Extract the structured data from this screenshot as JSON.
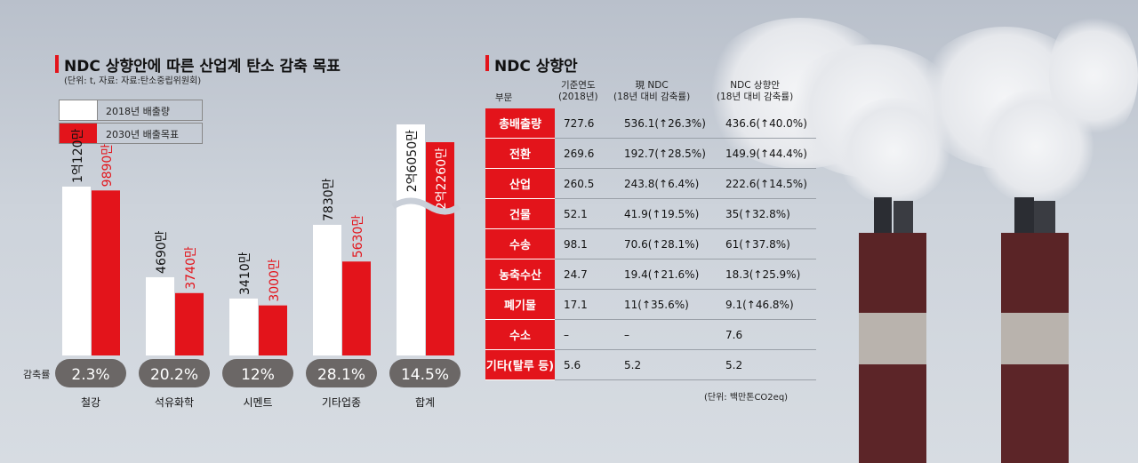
{
  "left": {
    "title": "NDC 상향안에 따른 산업계 탄소 감축 목표",
    "subtitle": "(단위: t, 자료: 자료:탄소중립위원회)",
    "legend": [
      "2018년 배출량",
      "2030년 배출목표"
    ],
    "rate_label": "감축률"
  },
  "right": {
    "title": "NDC 상향안",
    "headers": {
      "sector": "부문",
      "base": "기준연도\n(2018년)",
      "current": "現 NDC\n(18년 대비 감축률)",
      "raised": "NDC 상향안\n(18년 대비 감축률)"
    },
    "rows": [
      {
        "label": "총배출량",
        "base": "727.6",
        "current": "536.1(↑26.3%)",
        "raised": "436.6(↑40.0%)"
      },
      {
        "label": "전환",
        "base": "269.6",
        "current": "192.7(↑28.5%)",
        "raised": "149.9(↑44.4%)"
      },
      {
        "label": "산업",
        "base": "260.5",
        "current": "243.8(↑6.4%)",
        "raised": "222.6(↑14.5%)"
      },
      {
        "label": "건물",
        "base": "52.1",
        "current": "41.9(↑19.5%)",
        "raised": "35(↑32.8%)"
      },
      {
        "label": "수송",
        "base": "98.1",
        "current": "70.6(↑28.1%)",
        "raised": "61(↑37.8%)"
      },
      {
        "label": "농축수산",
        "base": "24.7",
        "current": "19.4(↑21.6%)",
        "raised": "18.3(↑25.9%)"
      },
      {
        "label": "폐기물",
        "base": "17.1",
        "current": "11(↑35.6%)",
        "raised": "9.1(↑46.8%)"
      },
      {
        "label": "수소",
        "base": "–",
        "current": "–",
        "raised": "7.6"
      },
      {
        "label": "기타(탈루 등)",
        "base": "5.6",
        "current": "5.2",
        "raised": "5.2"
      }
    ],
    "unit": "(단위: 백만톤CO2eq)"
  },
  "chart_data": {
    "type": "bar",
    "categories": [
      "철강",
      "석유화학",
      "시멘트",
      "기타업종",
      "합계"
    ],
    "series": [
      {
        "name": "2018년 배출량",
        "values": [
          101200000,
          46900000,
          34100000,
          78300000,
          260500000
        ],
        "labels": [
          "1억120만",
          "4690만",
          "3410만",
          "7830만",
          "2억6050만"
        ]
      },
      {
        "name": "2030년 배출목표",
        "values": [
          98900000,
          37400000,
          30000000,
          56300000,
          222600000
        ],
        "labels": [
          "9890만",
          "3740만",
          "3000만",
          "5630만",
          "2억2260만"
        ]
      }
    ],
    "reduction_rates": [
      "2.3%",
      "20.2%",
      "12%",
      "28.1%",
      "14.5%"
    ],
    "axis_break": true,
    "colors": {
      "s2018": "#ffffff",
      "s2030": "#e3141b",
      "pill": "#6b6766"
    }
  }
}
